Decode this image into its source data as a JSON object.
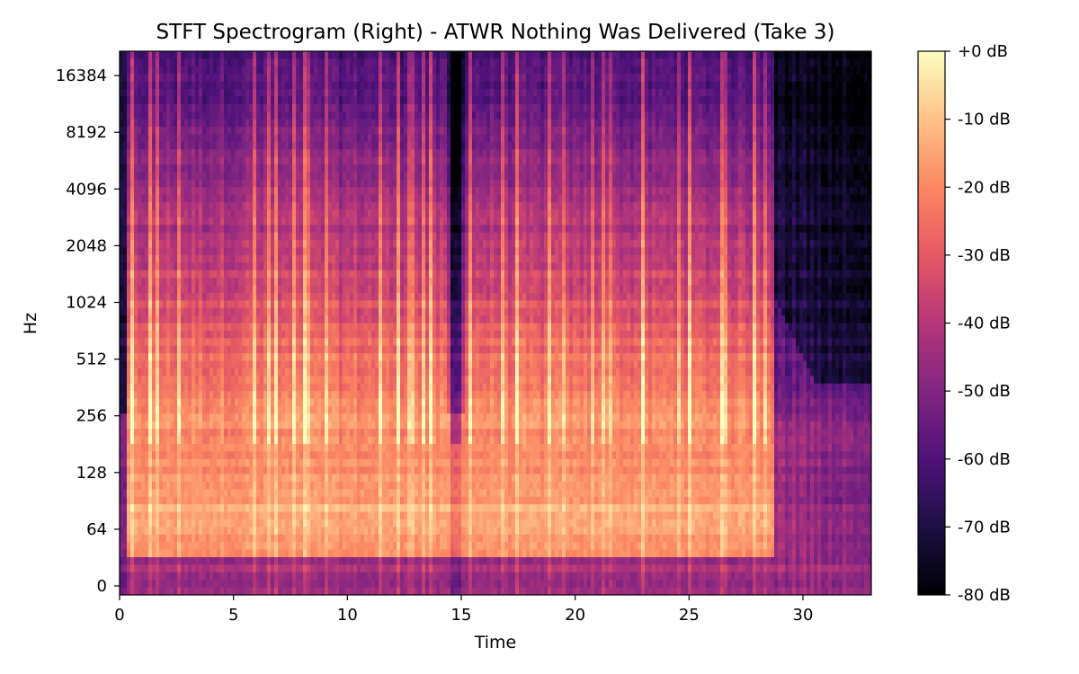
{
  "chart_data": {
    "type": "heatmap",
    "title": "STFT Spectrogram (Right) - ATWR Nothing Was Delivered (Take 3)",
    "xlabel": "Time",
    "ylabel": "Hz",
    "x_scale": "linear",
    "y_scale": "log2 (0 shown at bottom)",
    "xlim": [
      0,
      33
    ],
    "x_ticks": [
      0,
      5,
      10,
      15,
      20,
      25,
      30
    ],
    "x_tick_labels": [
      "0",
      "5",
      "10",
      "15",
      "20",
      "25",
      "30"
    ],
    "y_ticks": [
      0,
      64,
      128,
      256,
      512,
      1024,
      2048,
      4096,
      8192,
      16384
    ],
    "y_tick_labels": [
      "0",
      "64",
      "128",
      "256",
      "512",
      "1024",
      "2048",
      "4096",
      "8192",
      "16384"
    ],
    "colormap": "magma",
    "colorbar": {
      "label": "",
      "range_db": [
        -80,
        0
      ],
      "ticks": [
        0,
        -10,
        -20,
        -30,
        -40,
        -50,
        -60,
        -70,
        -80
      ],
      "tick_labels": [
        "+0 dB",
        "-10 dB",
        "-20 dB",
        "-30 dB",
        "-40 dB",
        "-50 dB",
        "-60 dB",
        "-70 dB",
        "-80 dB"
      ],
      "colors": [
        "#000004",
        "#1c1044",
        "#4f127b",
        "#812581",
        "#b5367a",
        "#e55964",
        "#fb8761",
        "#fec287",
        "#fcfdbf"
      ]
    },
    "music_end_time": 28.7,
    "quiet_gap_time": 14.8,
    "grid": false,
    "legend": "none"
  }
}
